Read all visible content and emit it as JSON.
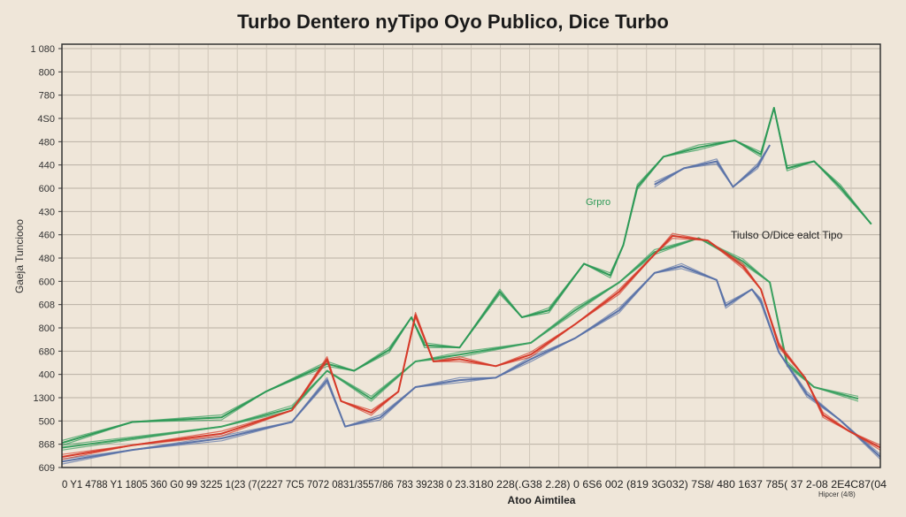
{
  "chart_data": {
    "type": "line",
    "title": "Turbo Dentero nyTipo Oyo Publico, Dice Turbo",
    "xlabel": "Atoo Aimtilea",
    "ylabel": "Gaeja Tunciooo",
    "ytick_labels": [
      "1 080",
      "800",
      "780",
      "4S0",
      "480",
      "440",
      "600",
      "430",
      "460",
      "480",
      "600",
      "608",
      "800",
      "680",
      "400",
      "1300",
      "500",
      "868",
      "609"
    ],
    "xtick_text": [
      "0 Y1 4788 Y1 1805 360 G0 99 3225 1(23 (7(2227 7C5 7072 0831/3557/86 783 39238 0 23.",
      "3180 228(.G38 2.28) 0 6S6 002 (819 3G032) 7S8/ 480 1637 785( 37 2-08 2E4C87(04"
    ],
    "xnote": "Hipcer (4/8)",
    "annotations": {
      "green": "Grpro",
      "legend": "Tiulso O/Dice ealct Tipo"
    },
    "xlim": [
      0,
      100
    ],
    "ylim": [
      0,
      18
    ],
    "grid": true,
    "series": [
      {
        "name": "green-upper",
        "color": "#2e9a57",
        "points": [
          [
            0,
            1.1
          ],
          [
            8.6,
            1.9
          ],
          [
            19.5,
            2.2
          ],
          [
            24.9,
            3.2
          ],
          [
            32.4,
            4.5
          ],
          [
            35.7,
            4.1
          ],
          [
            40,
            5.1
          ],
          [
            42.7,
            6.4
          ],
          [
            44.3,
            5.3
          ],
          [
            48.6,
            5.1
          ],
          [
            53.5,
            7.6
          ],
          [
            56.2,
            6.4
          ],
          [
            59.5,
            6.8
          ],
          [
            63.8,
            8.7
          ],
          [
            67,
            8.3
          ],
          [
            68.6,
            9.5
          ],
          [
            70.3,
            12.1
          ],
          [
            73.5,
            13.3
          ],
          [
            77.8,
            13.8
          ],
          [
            82.2,
            14.0
          ],
          [
            85.4,
            13.5
          ],
          [
            87,
            15.4
          ],
          [
            88.6,
            12.9
          ],
          [
            91.9,
            13.1
          ],
          [
            95.1,
            12.1
          ],
          [
            98.9,
            10.4
          ]
        ]
      },
      {
        "name": "green-lower",
        "color": "#3aa060",
        "points": [
          [
            0,
            0.9
          ],
          [
            19.5,
            1.7
          ],
          [
            28.1,
            2.6
          ],
          [
            32.4,
            4.1
          ],
          [
            37.8,
            3.0
          ],
          [
            43.2,
            4.5
          ],
          [
            48.6,
            4.9
          ],
          [
            57.3,
            5.3
          ],
          [
            62.7,
            6.8
          ],
          [
            68.1,
            7.9
          ],
          [
            72.4,
            9.3
          ],
          [
            77.8,
            9.8
          ],
          [
            83.2,
            8.9
          ],
          [
            86.5,
            7.9
          ],
          [
            88.6,
            4.5
          ],
          [
            91.9,
            3.4
          ],
          [
            97.3,
            3.0
          ]
        ]
      },
      {
        "name": "blue-upper",
        "color": "#5b73a8",
        "points": [
          [
            72.4,
            12.2
          ],
          [
            76,
            12.8
          ],
          [
            80,
            13.2
          ],
          [
            82,
            12.0
          ],
          [
            85,
            13.0
          ],
          [
            86.5,
            13.8
          ]
        ]
      },
      {
        "name": "blue",
        "color": "#5b73a8",
        "points": [
          [
            0,
            0.3
          ],
          [
            8.6,
            0.7
          ],
          [
            19.5,
            1.3
          ],
          [
            28.1,
            1.9
          ],
          [
            32.4,
            3.8
          ],
          [
            34.6,
            1.7
          ],
          [
            38.9,
            2.2
          ],
          [
            43.2,
            3.4
          ],
          [
            48.6,
            3.8
          ],
          [
            53,
            3.8
          ],
          [
            57.3,
            4.7
          ],
          [
            62.7,
            5.5
          ],
          [
            68.1,
            6.8
          ],
          [
            72.4,
            8.3
          ],
          [
            75.7,
            8.7
          ],
          [
            80,
            8.0
          ],
          [
            81.1,
            7.0
          ],
          [
            84.3,
            7.6
          ],
          [
            85.4,
            7.2
          ],
          [
            87.6,
            4.9
          ],
          [
            91,
            3.2
          ],
          [
            95,
            2.0
          ],
          [
            100,
            0.5
          ]
        ]
      },
      {
        "name": "red",
        "color": "#d63a2a",
        "points": [
          [
            0,
            0.5
          ],
          [
            8.6,
            0.9
          ],
          [
            19.5,
            1.5
          ],
          [
            28.1,
            2.4
          ],
          [
            32.4,
            4.7
          ],
          [
            34.1,
            2.8
          ],
          [
            37.8,
            2.4
          ],
          [
            41.1,
            3.2
          ],
          [
            43.2,
            6.6
          ],
          [
            45.4,
            4.5
          ],
          [
            48.6,
            4.7
          ],
          [
            53,
            4.3
          ],
          [
            57.3,
            4.9
          ],
          [
            62.7,
            6.1
          ],
          [
            68.1,
            7.6
          ],
          [
            72.4,
            9.1
          ],
          [
            74.6,
            10.0
          ],
          [
            78.9,
            9.7
          ],
          [
            83.2,
            8.7
          ],
          [
            85.4,
            7.6
          ],
          [
            87.6,
            5.3
          ],
          [
            90.8,
            3.8
          ],
          [
            93,
            2.3
          ],
          [
            96.2,
            1.5
          ],
          [
            100,
            0.9
          ]
        ]
      }
    ]
  }
}
